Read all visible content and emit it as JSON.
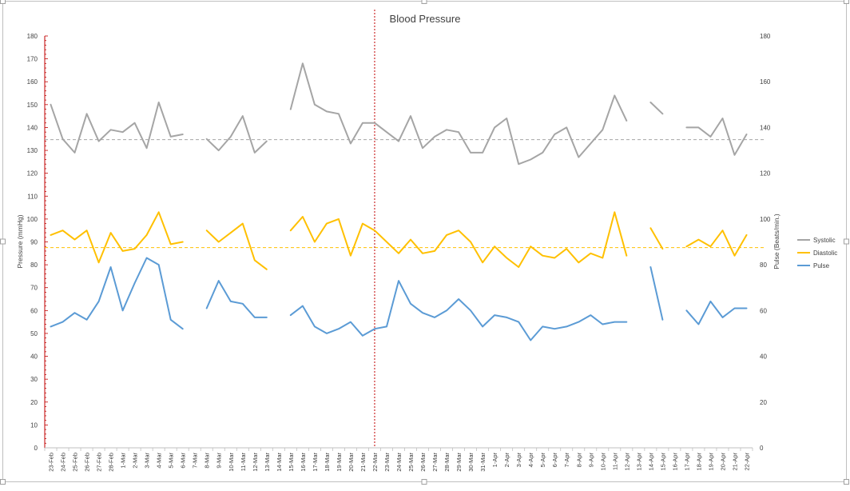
{
  "chart_data": {
    "type": "line",
    "title": "Blood Pressure",
    "ylabel": "Pressure (mmHg)",
    "y2label": "Pulse (Beats/min.)",
    "ylim": [
      0,
      180
    ],
    "y2lim": [
      0,
      180
    ],
    "yticks": [
      0,
      10,
      20,
      30,
      40,
      50,
      60,
      70,
      80,
      90,
      100,
      110,
      120,
      130,
      140,
      150,
      160,
      170,
      180
    ],
    "y2ticks": [
      0,
      20,
      40,
      60,
      80,
      100,
      120,
      140,
      160,
      180
    ],
    "legend_position": "right",
    "grid": false,
    "categories": [
      "23-Feb",
      "24-Feb",
      "25-Feb",
      "26-Feb",
      "27-Feb",
      "28-Feb",
      "1-Mar",
      "2-Mar",
      "3-Mar",
      "4-Mar",
      "5-Mar",
      "6-Mar",
      "7-Mar",
      "8-Mar",
      "9-Mar",
      "10-Mar",
      "11-Mar",
      "12-Mar",
      "13-Mar",
      "14-Mar",
      "15-Mar",
      "16-Mar",
      "17-Mar",
      "18-Mar",
      "19-Mar",
      "20-Mar",
      "21-Mar",
      "22-Mar",
      "23-Mar",
      "24-Mar",
      "25-Mar",
      "26-Mar",
      "27-Mar",
      "28-Mar",
      "29-Mar",
      "30-Mar",
      "31-Mar",
      "1-Apr",
      "2-Apr",
      "3-Apr",
      "4-Apr",
      "5-Apr",
      "6-Apr",
      "7-Apr",
      "8-Apr",
      "9-Apr",
      "10-Apr",
      "11-Apr",
      "12-Apr",
      "13-Apr",
      "14-Apr",
      "15-Apr",
      "16-Apr",
      "17-Apr",
      "18-Apr",
      "19-Apr",
      "20-Apr",
      "21-Apr",
      "22-Apr"
    ],
    "series": [
      {
        "name": "Systolic",
        "color": "#a5a5a5",
        "axis": "left",
        "values": [
          150,
          135,
          129,
          146,
          134,
          139,
          138,
          142,
          131,
          151,
          136,
          137,
          null,
          135,
          130,
          136,
          145,
          129,
          134,
          null,
          148,
          168,
          150,
          147,
          146,
          133,
          142,
          142,
          138,
          134,
          145,
          131,
          136,
          139,
          138,
          129,
          129,
          140,
          144,
          124,
          126,
          129,
          137,
          140,
          127,
          133,
          139,
          154,
          143,
          null,
          151,
          146,
          null,
          140,
          140,
          136,
          144,
          128,
          137
        ]
      },
      {
        "name": "Diastolic",
        "color": "#ffc000",
        "axis": "left",
        "values": [
          93,
          95,
          91,
          95,
          81,
          94,
          86,
          87,
          93,
          103,
          89,
          90,
          null,
          95,
          90,
          94,
          98,
          82,
          78,
          null,
          95,
          101,
          90,
          98,
          100,
          84,
          98,
          95,
          90,
          85,
          91,
          85,
          86,
          93,
          95,
          90,
          81,
          88,
          83,
          79,
          88,
          84,
          83,
          87,
          81,
          85,
          83,
          103,
          84,
          null,
          96,
          87,
          null,
          88,
          91,
          88,
          95,
          84,
          93
        ]
      },
      {
        "name": "Pulse",
        "color": "#5b9bd5",
        "axis": "right",
        "values": [
          53,
          55,
          59,
          56,
          64,
          79,
          60,
          72,
          83,
          80,
          56,
          52,
          null,
          61,
          73,
          64,
          63,
          57,
          57,
          null,
          58,
          62,
          53,
          50,
          52,
          55,
          49,
          52,
          53,
          73,
          63,
          59,
          57,
          60,
          65,
          60,
          53,
          58,
          57,
          55,
          47,
          53,
          52,
          53,
          55,
          58,
          54,
          55,
          55,
          null,
          79,
          56,
          null,
          60,
          54,
          64,
          57,
          61,
          61
        ]
      }
    ],
    "reference_lines": [
      {
        "series": "Systolic",
        "value": 134.7,
        "color": "#a5a5a5",
        "style": "dashed"
      },
      {
        "series": "Diastolic",
        "value": 87.5,
        "color": "#ffc000",
        "style": "dashed"
      }
    ],
    "marker_line": {
      "category": "22-Mar",
      "color": "#c00000",
      "style": "dotted"
    }
  }
}
